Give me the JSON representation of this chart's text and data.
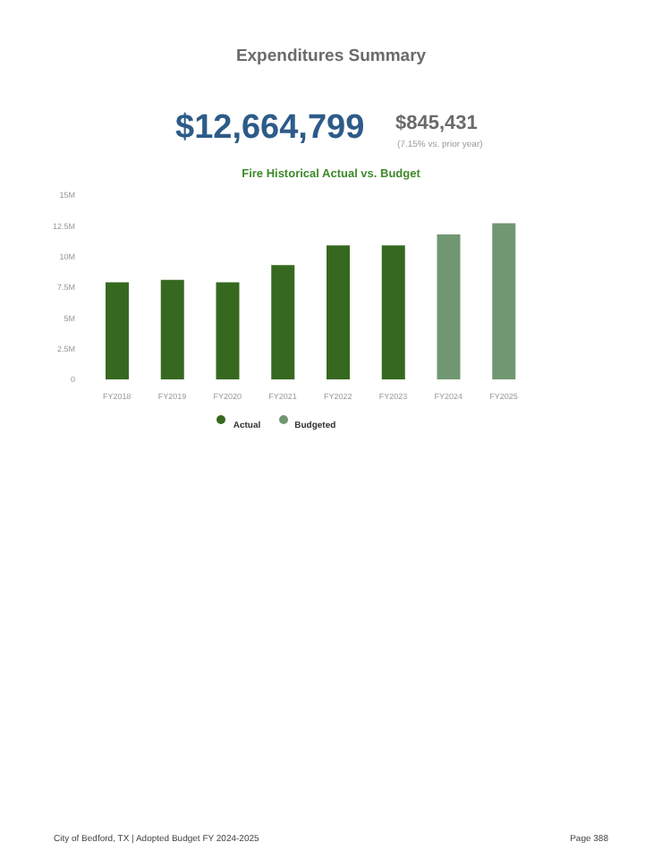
{
  "chart_data": {
    "type": "bar",
    "title": "Expenditures Summary",
    "subtitle": "Fire Historical Actual vs. Budget",
    "annotations": [
      "$12,664,799",
      "$845,431",
      "(7.15% vs. prior year)",
      "City of Bedford, TX | Adopted Budget FY 2024-2025",
      "Page 388"
    ],
    "categories": [
      "FY2018",
      "FY2019",
      "FY2020",
      "FY2021",
      "FY2022",
      "FY2023",
      "FY2024",
      "FY2025"
    ],
    "series": [
      {
        "name": "Actual",
        "color": "#36691f",
        "values": [
          7900000,
          8100000,
          7900000,
          9300000,
          10900000,
          10900000,
          null,
          null
        ]
      },
      {
        "name": "Budgeted",
        "color": "#709772",
        "values": [
          null,
          null,
          null,
          null,
          null,
          null,
          11800000,
          12700000
        ]
      }
    ],
    "stacked": true,
    "ylim": [
      0,
      15000000
    ],
    "yticks": [
      {
        "value": 0,
        "label": "0"
      },
      {
        "value": 2500000,
        "label": "2.5M"
      },
      {
        "value": 5000000,
        "label": "5M"
      },
      {
        "value": 7500000,
        "label": "7.5M"
      },
      {
        "value": 10000000,
        "label": "10M"
      },
      {
        "value": 12500000,
        "label": "12.5M"
      },
      {
        "value": 15000000,
        "label": "15M"
      }
    ],
    "grid": false,
    "legend": "bottom"
  }
}
